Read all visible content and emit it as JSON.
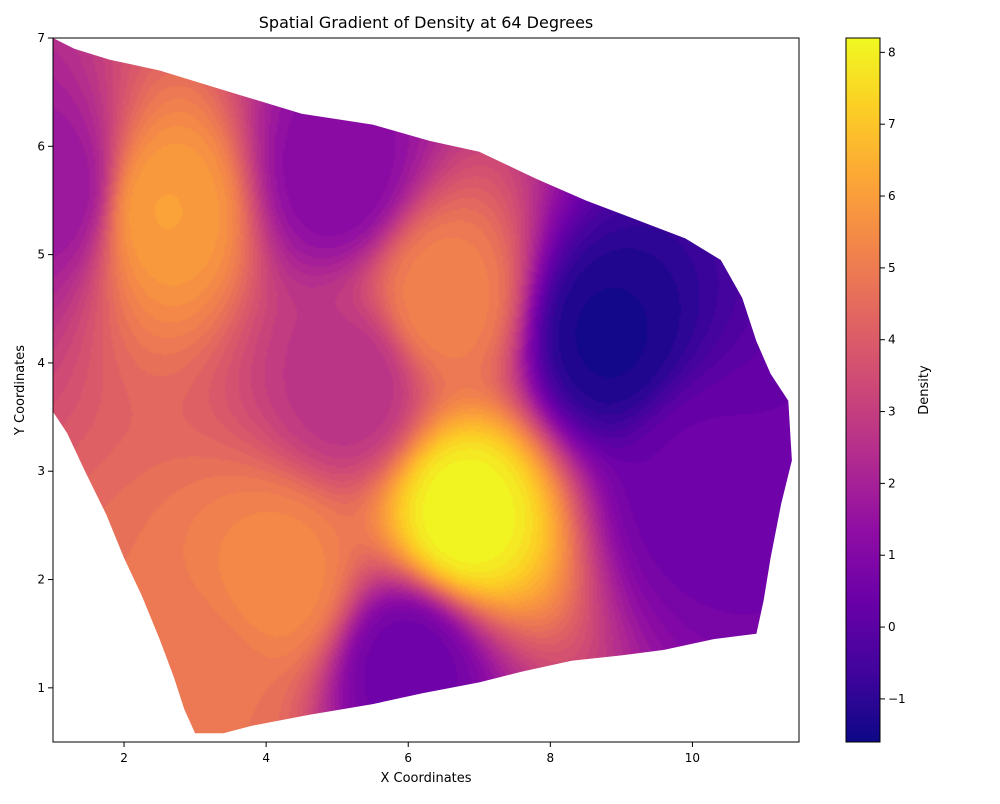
{
  "chart_data": {
    "type": "heatmap",
    "title": "Spatial Gradient of Density at 64 Degrees",
    "xlabel": "X Coordinates",
    "ylabel": "Y Coordinates",
    "xlim": [
      1.0,
      11.5
    ],
    "ylim": [
      0.5,
      7.0
    ],
    "x_ticks": [
      2,
      4,
      6,
      8,
      10
    ],
    "y_ticks": [
      1,
      2,
      3,
      4,
      5,
      6,
      7
    ],
    "colormap": "plasma",
    "grid": false,
    "colorbar": {
      "label": "Density",
      "range": [
        -1.6,
        8.2
      ],
      "ticks": [
        -1,
        0,
        1,
        2,
        3,
        4,
        5,
        6,
        7,
        8
      ]
    },
    "boundary": [
      [
        1.0,
        7.0
      ],
      [
        1.3,
        6.9
      ],
      [
        1.8,
        6.8
      ],
      [
        2.5,
        6.7
      ],
      [
        3.5,
        6.5
      ],
      [
        4.5,
        6.3
      ],
      [
        5.5,
        6.2
      ],
      [
        6.3,
        6.05
      ],
      [
        7.0,
        5.95
      ],
      [
        7.8,
        5.7
      ],
      [
        8.5,
        5.5
      ],
      [
        9.3,
        5.3
      ],
      [
        9.9,
        5.15
      ],
      [
        10.4,
        4.95
      ],
      [
        10.7,
        4.6
      ],
      [
        10.9,
        4.2
      ],
      [
        11.1,
        3.9
      ],
      [
        11.35,
        3.65
      ],
      [
        11.4,
        3.1
      ],
      [
        11.25,
        2.7
      ],
      [
        11.1,
        2.2
      ],
      [
        11.0,
        1.8
      ],
      [
        10.9,
        1.5
      ],
      [
        10.3,
        1.45
      ],
      [
        9.6,
        1.35
      ],
      [
        9.0,
        1.3
      ],
      [
        8.3,
        1.25
      ],
      [
        7.6,
        1.15
      ],
      [
        7.0,
        1.05
      ],
      [
        6.2,
        0.95
      ],
      [
        5.5,
        0.85
      ],
      [
        4.6,
        0.75
      ],
      [
        3.8,
        0.65
      ],
      [
        3.4,
        0.58
      ],
      [
        3.0,
        0.58
      ],
      [
        2.85,
        0.8
      ],
      [
        2.7,
        1.1
      ],
      [
        2.5,
        1.45
      ],
      [
        2.25,
        1.85
      ],
      [
        2.0,
        2.2
      ],
      [
        1.75,
        2.6
      ],
      [
        1.45,
        3.0
      ],
      [
        1.2,
        3.35
      ],
      [
        1.0,
        3.55
      ]
    ],
    "density_features": [
      {
        "x": 6.8,
        "y": 2.6,
        "value": 8.2
      },
      {
        "x": 2.6,
        "y": 5.4,
        "value": 6.0
      },
      {
        "x": 6.5,
        "y": 4.6,
        "value": 5.2
      },
      {
        "x": 4.2,
        "y": 2.0,
        "value": 5.4
      },
      {
        "x": 3.1,
        "y": 1.0,
        "value": 4.8
      },
      {
        "x": 5.0,
        "y": 5.75,
        "value": 1.1
      },
      {
        "x": 5.2,
        "y": 3.8,
        "value": 2.6
      },
      {
        "x": 6.0,
        "y": 1.2,
        "value": 0.4
      },
      {
        "x": 8.8,
        "y": 4.25,
        "value": -1.4
      },
      {
        "x": 10.1,
        "y": 2.9,
        "value": 0.4
      },
      {
        "x": 1.0,
        "y": 5.6,
        "value": 1.6
      }
    ]
  }
}
